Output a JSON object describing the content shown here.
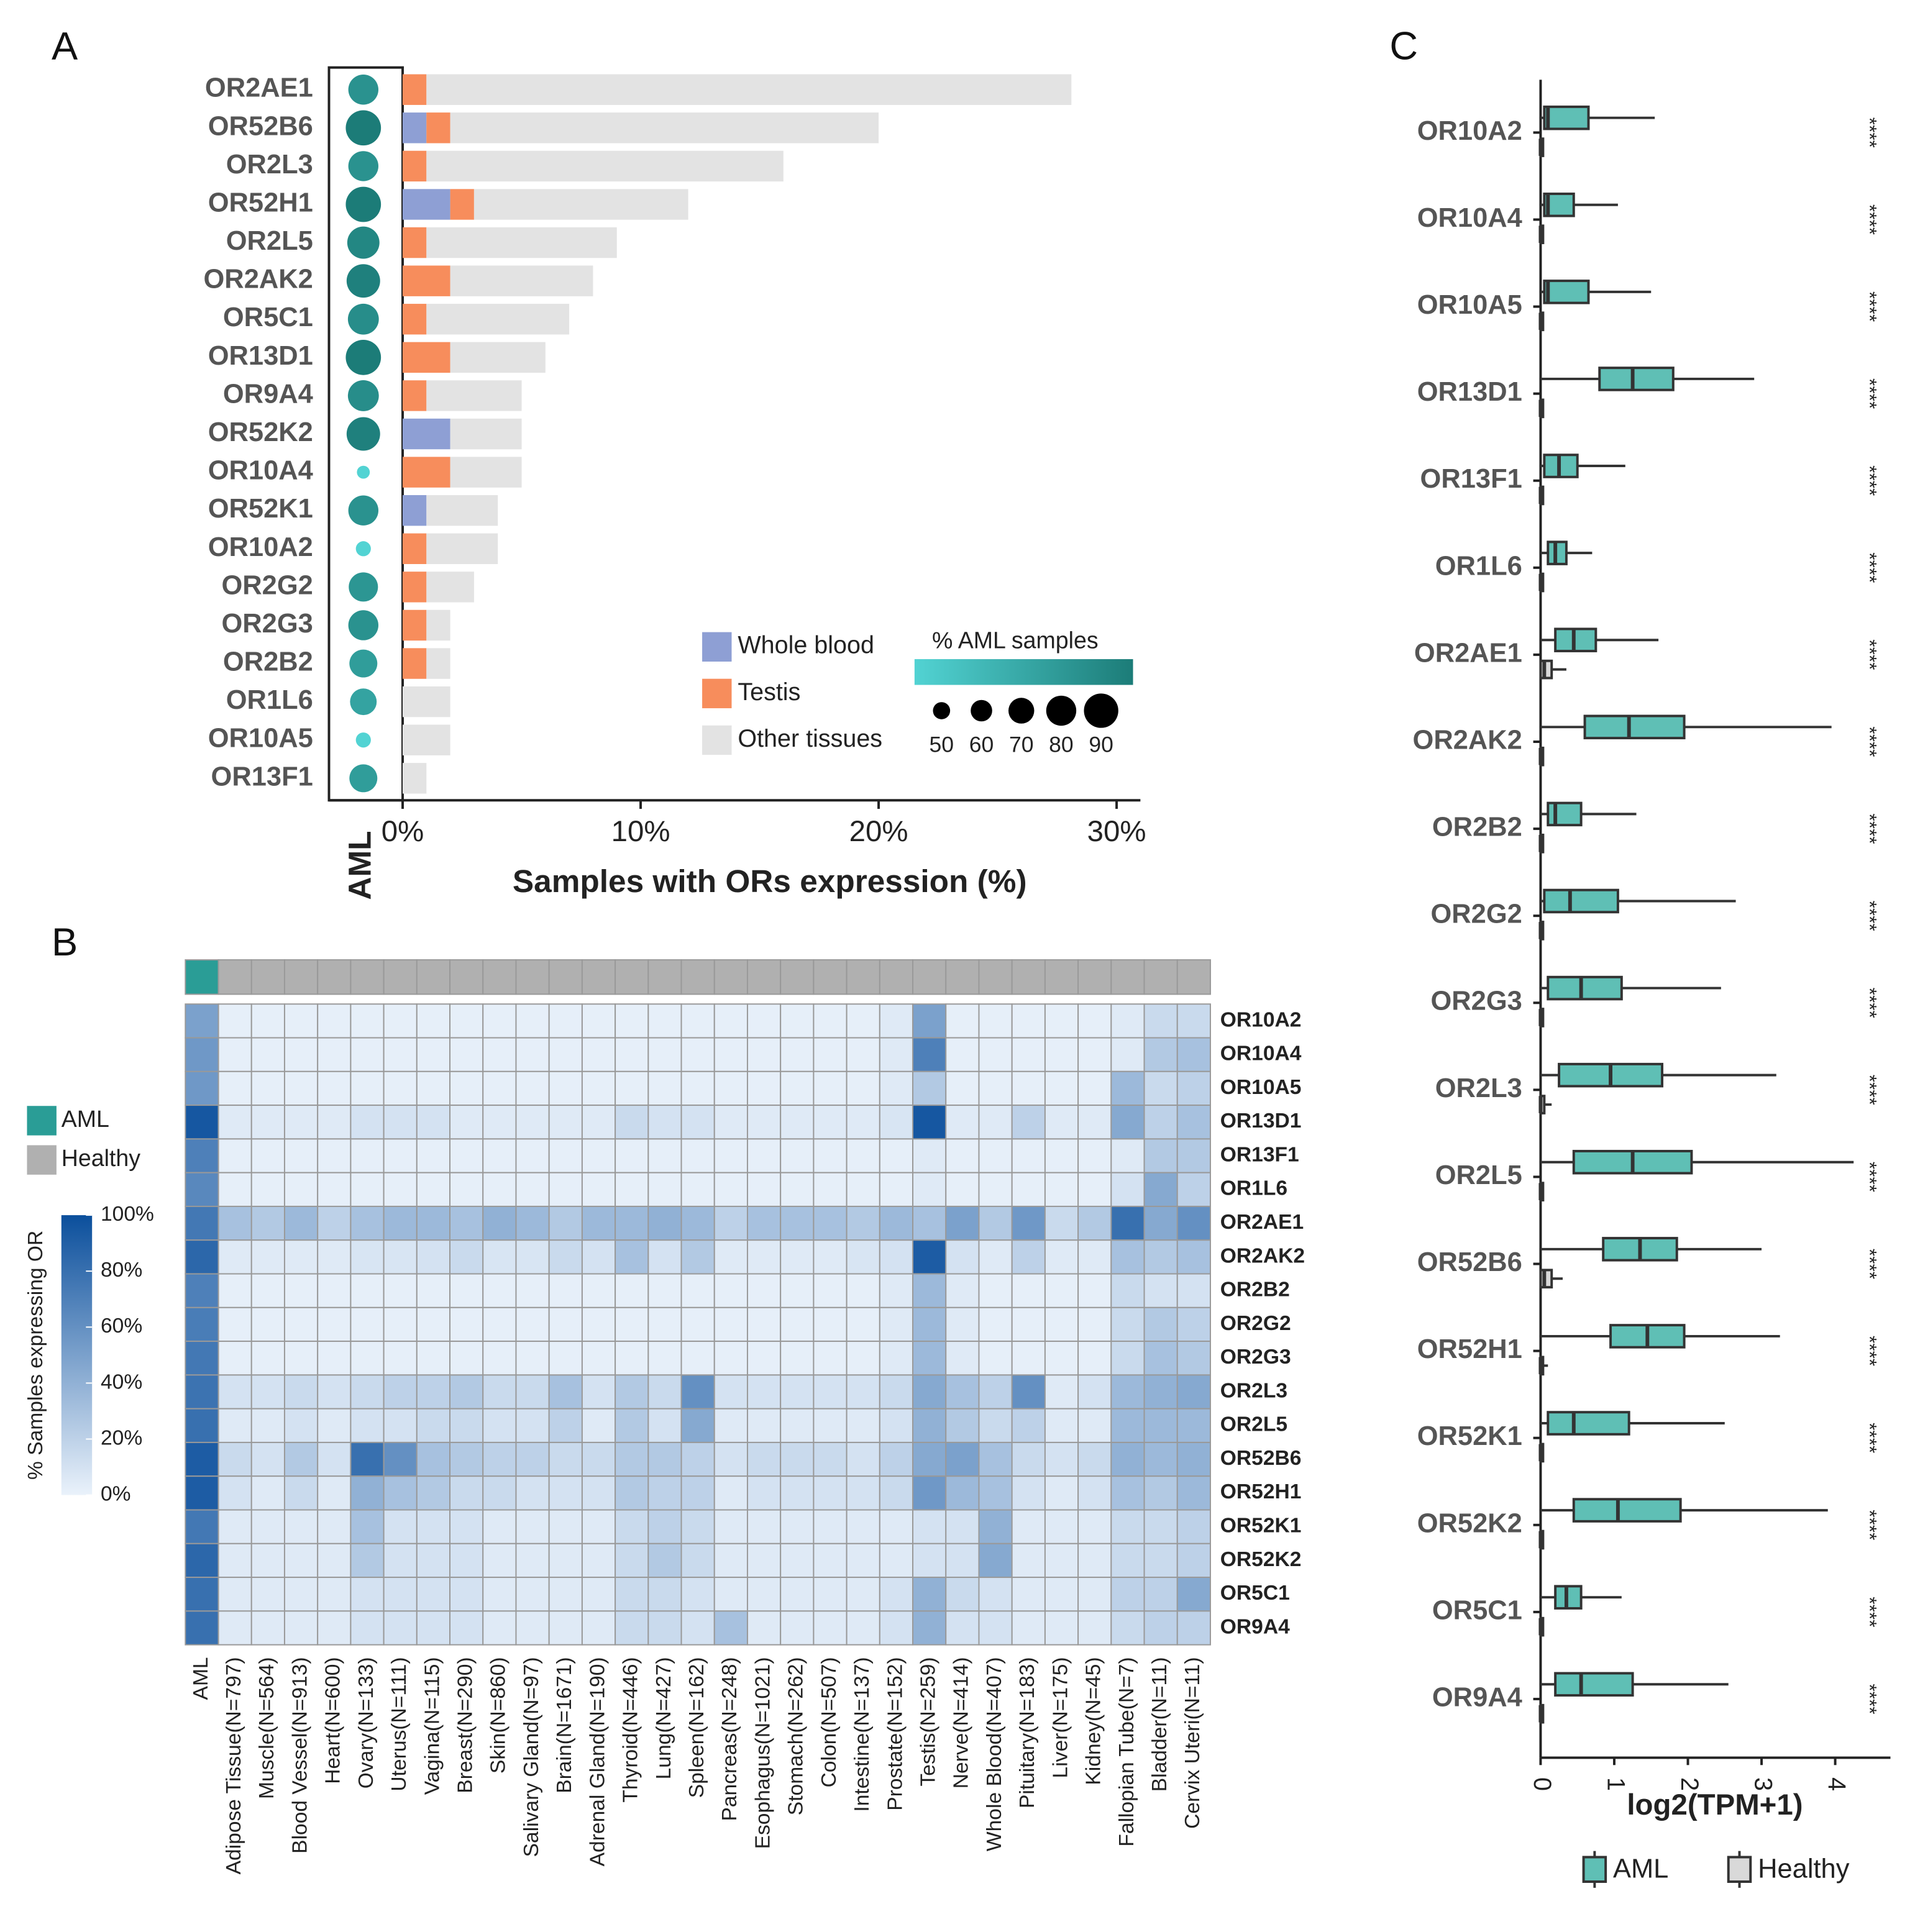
{
  "chart_data": [
    {
      "type": "bar",
      "panel_label": "A",
      "categories": [
        "OR2AE1",
        "OR52B6",
        "OR2L3",
        "OR52H1",
        "OR2L5",
        "OR2AK2",
        "OR5C1",
        "OR13D1",
        "OR9A4",
        "OR52K2",
        "OR10A4",
        "OR52K1",
        "OR10A2",
        "OR2G2",
        "OR2G3",
        "OR2B2",
        "OR1L6",
        "OR10A5",
        "OR13F1"
      ],
      "series": [
        {
          "name": "Whole blood",
          "color": "#8e9fd4",
          "values": [
            0,
            1,
            0,
            2,
            0,
            0,
            0,
            0,
            0,
            2,
            0,
            1,
            0,
            0,
            0,
            0,
            0,
            0,
            0
          ]
        },
        {
          "name": "Testis",
          "color": "#f78d5c",
          "values": [
            1,
            1,
            1,
            1,
            1,
            2,
            1,
            2,
            1,
            0,
            2,
            0,
            1,
            1,
            1,
            1,
            0,
            0,
            0
          ]
        },
        {
          "name": "Other tissues",
          "color": "#e3e3e3",
          "values": [
            27.1,
            18,
            15,
            9,
            8,
            6,
            6,
            4,
            4,
            3,
            3,
            3,
            3,
            2,
            1,
            1,
            2,
            2,
            1
          ]
        }
      ],
      "dots": {
        "name": "% AML samples",
        "values": [
          80,
          92,
          80,
          92,
          85,
          88,
          82,
          92,
          82,
          88,
          40,
          80,
          45,
          78,
          80,
          75,
          72,
          45,
          75
        ],
        "size_ticks": [
          50,
          60,
          70,
          80,
          90
        ],
        "colors": [
          "#52d3d3",
          "#1c7c78"
        ]
      },
      "dot_column_label": "AML",
      "xlim": [
        0,
        31
      ],
      "xticks": [
        {
          "value": 0,
          "label": "0%"
        },
        {
          "value": 10,
          "label": "10%"
        },
        {
          "value": 20,
          "label": "20%"
        },
        {
          "value": 30,
          "label": "30%"
        }
      ],
      "xlabel": "Samples with ORs expression (%)"
    },
    {
      "type": "heatmap",
      "panel_label": "B",
      "rows": [
        "OR10A2",
        "OR10A4",
        "OR10A5",
        "OR13D1",
        "OR13F1",
        "OR1L6",
        "OR2AE1",
        "OR2AK2",
        "OR2B2",
        "OR2G2",
        "OR2G3",
        "OR2L3",
        "OR2L5",
        "OR52B6",
        "OR52H1",
        "OR52K1",
        "OR52K2",
        "OR5C1",
        "OR9A4"
      ],
      "columns": [
        "AML",
        "Adipose Tissue(N=797)",
        "Muscle(N=564)",
        "Blood Vessel(N=913)",
        "Heart(N=600)",
        "Ovary(N=133)",
        "Uterus(N=111)",
        "Vagina(N=115)",
        "Breast(N=290)",
        "Skin(N=860)",
        "Salivary Gland(N=97)",
        "Brain(N=1671)",
        "Adrenal Gland(N=190)",
        "Thyroid(N=446)",
        "Lung(N=427)",
        "Spleen(N=162)",
        "Pancreas(N=248)",
        "Esophagus(N=1021)",
        "Stomach(N=262)",
        "Colon(N=507)",
        "Intestine(N=137)",
        "Prostate(N=152)",
        "Testis(N=259)",
        "Nerve(N=414)",
        "Whole Blood(N=407)",
        "Pituitary(N=183)",
        "Liver(N=175)",
        "Kidney(N=45)",
        "Fallopian Tube(N=7)",
        "Bladder(N=11)",
        "Cervix Uteri(N=11)"
      ],
      "column_groups": [
        "AML",
        "Healthy",
        "Healthy",
        "Healthy",
        "Healthy",
        "Healthy",
        "Healthy",
        "Healthy",
        "Healthy",
        "Healthy",
        "Healthy",
        "Healthy",
        "Healthy",
        "Healthy",
        "Healthy",
        "Healthy",
        "Healthy",
        "Healthy",
        "Healthy",
        "Healthy",
        "Healthy",
        "Healthy",
        "Healthy",
        "Healthy",
        "Healthy",
        "Healthy",
        "Healthy",
        "Healthy",
        "Healthy",
        "Healthy",
        "Healthy"
      ],
      "groups": [
        {
          "name": "AML",
          "color": "#2a9d96"
        },
        {
          "name": "Healthy",
          "color": "#b0b0b0"
        }
      ],
      "values": [
        [
          50,
          2,
          2,
          2,
          2,
          2,
          2,
          2,
          2,
          2,
          2,
          2,
          2,
          2,
          2,
          2,
          2,
          2,
          2,
          2,
          2,
          5,
          50,
          2,
          2,
          2,
          2,
          2,
          5,
          15,
          15
        ],
        [
          55,
          2,
          2,
          2,
          2,
          2,
          2,
          2,
          2,
          2,
          2,
          2,
          2,
          2,
          2,
          2,
          2,
          2,
          2,
          2,
          2,
          5,
          70,
          2,
          2,
          2,
          2,
          2,
          5,
          25,
          30
        ],
        [
          55,
          2,
          2,
          2,
          2,
          2,
          2,
          2,
          2,
          2,
          2,
          2,
          2,
          2,
          2,
          2,
          2,
          2,
          2,
          2,
          2,
          5,
          25,
          2,
          2,
          2,
          2,
          2,
          35,
          15,
          20
        ],
        [
          95,
          5,
          5,
          5,
          5,
          10,
          10,
          10,
          5,
          5,
          5,
          5,
          5,
          15,
          10,
          10,
          5,
          5,
          5,
          5,
          5,
          8,
          95,
          5,
          5,
          20,
          5,
          5,
          45,
          20,
          30
        ],
        [
          70,
          2,
          2,
          2,
          2,
          2,
          2,
          2,
          2,
          2,
          2,
          2,
          2,
          2,
          2,
          2,
          2,
          2,
          2,
          2,
          2,
          2,
          5,
          2,
          2,
          2,
          2,
          2,
          5,
          25,
          25
        ],
        [
          65,
          2,
          2,
          2,
          2,
          2,
          2,
          2,
          2,
          2,
          2,
          2,
          2,
          2,
          2,
          2,
          2,
          2,
          2,
          2,
          2,
          2,
          5,
          2,
          2,
          2,
          2,
          2,
          10,
          45,
          20
        ],
        [
          75,
          30,
          25,
          35,
          20,
          30,
          35,
          35,
          30,
          40,
          35,
          25,
          35,
          35,
          40,
          35,
          20,
          30,
          30,
          30,
          25,
          35,
          30,
          50,
          25,
          55,
          15,
          25,
          80,
          45,
          60
        ],
        [
          85,
          5,
          5,
          5,
          5,
          8,
          8,
          10,
          15,
          8,
          8,
          15,
          10,
          30,
          10,
          25,
          5,
          5,
          5,
          5,
          8,
          10,
          92,
          10,
          5,
          20,
          5,
          5,
          30,
          25,
          30
        ],
        [
          70,
          2,
          2,
          2,
          2,
          2,
          2,
          2,
          2,
          2,
          2,
          2,
          2,
          2,
          2,
          2,
          2,
          2,
          2,
          2,
          2,
          5,
          35,
          5,
          2,
          2,
          2,
          2,
          15,
          10,
          10
        ],
        [
          72,
          2,
          2,
          2,
          2,
          2,
          2,
          2,
          2,
          2,
          2,
          2,
          2,
          2,
          2,
          2,
          2,
          2,
          2,
          2,
          2,
          5,
          35,
          5,
          2,
          2,
          2,
          2,
          15,
          25,
          20
        ],
        [
          75,
          2,
          2,
          2,
          2,
          2,
          2,
          2,
          2,
          2,
          2,
          2,
          2,
          2,
          2,
          2,
          2,
          2,
          2,
          2,
          2,
          5,
          35,
          5,
          2,
          2,
          2,
          2,
          15,
          30,
          25
        ],
        [
          78,
          10,
          10,
          15,
          10,
          15,
          20,
          20,
          25,
          15,
          15,
          30,
          10,
          25,
          15,
          60,
          10,
          10,
          10,
          10,
          10,
          15,
          45,
          30,
          20,
          60,
          5,
          10,
          35,
          40,
          45
        ],
        [
          80,
          5,
          5,
          10,
          5,
          10,
          10,
          15,
          15,
          10,
          10,
          20,
          5,
          25,
          10,
          45,
          5,
          5,
          5,
          5,
          5,
          10,
          40,
          25,
          15,
          20,
          5,
          5,
          35,
          35,
          35
        ],
        [
          92,
          15,
          10,
          25,
          10,
          80,
          60,
          30,
          25,
          20,
          20,
          15,
          15,
          25,
          25,
          20,
          10,
          15,
          15,
          15,
          10,
          20,
          45,
          50,
          30,
          15,
          10,
          15,
          40,
          35,
          40
        ],
        [
          92,
          10,
          5,
          15,
          5,
          40,
          30,
          25,
          15,
          15,
          10,
          10,
          10,
          25,
          20,
          20,
          5,
          10,
          10,
          10,
          10,
          15,
          55,
          35,
          30,
          10,
          5,
          10,
          30,
          25,
          35
        ],
        [
          75,
          5,
          5,
          5,
          5,
          30,
          10,
          10,
          10,
          5,
          5,
          5,
          5,
          15,
          20,
          15,
          5,
          5,
          5,
          5,
          5,
          5,
          10,
          10,
          40,
          5,
          5,
          5,
          15,
          15,
          20
        ],
        [
          85,
          5,
          5,
          5,
          5,
          25,
          10,
          10,
          10,
          5,
          5,
          5,
          5,
          15,
          25,
          15,
          5,
          5,
          5,
          5,
          5,
          5,
          10,
          10,
          45,
          5,
          5,
          5,
          15,
          15,
          20
        ],
        [
          80,
          5,
          5,
          5,
          5,
          10,
          10,
          10,
          10,
          5,
          5,
          5,
          5,
          15,
          15,
          10,
          5,
          5,
          5,
          5,
          5,
          10,
          40,
          15,
          10,
          5,
          5,
          5,
          20,
          20,
          45
        ],
        [
          80,
          5,
          5,
          5,
          5,
          10,
          10,
          10,
          10,
          5,
          5,
          5,
          5,
          15,
          15,
          10,
          30,
          5,
          5,
          5,
          5,
          10,
          40,
          10,
          10,
          5,
          5,
          5,
          15,
          20,
          20
        ]
      ],
      "zlim": [
        0,
        100
      ],
      "colorscale": [
        "#eaf2fb",
        "#0b4f9c"
      ],
      "colorbar": {
        "title": "% Samples expressing OR",
        "ticks": [
          {
            "value": 0,
            "label": "0%"
          },
          {
            "value": 20,
            "label": "20%"
          },
          {
            "value": 40,
            "label": "40%"
          },
          {
            "value": 60,
            "label": "60%"
          },
          {
            "value": 80,
            "label": "80%"
          },
          {
            "value": 100,
            "label": "100%"
          }
        ]
      }
    },
    {
      "type": "box",
      "panel_label": "C",
      "categories": [
        "OR10A2",
        "OR10A4",
        "OR10A5",
        "OR13D1",
        "OR13F1",
        "OR1L6",
        "OR2AE1",
        "OR2AK2",
        "OR2B2",
        "OR2G2",
        "OR2G3",
        "OR2L3",
        "OR2L5",
        "OR52B6",
        "OR52H1",
        "OR52K1",
        "OR52K2",
        "OR5C1",
        "OR9A4"
      ],
      "series": [
        {
          "name": "AML",
          "color": "#5fbfb5",
          "values": [
            [
              0,
              0.05,
              0.1,
              0.65,
              1.55
            ],
            [
              0,
              0.05,
              0.1,
              0.45,
              1.05
            ],
            [
              0,
              0.05,
              0.1,
              0.65,
              1.5
            ],
            [
              0,
              0.8,
              1.25,
              1.8,
              2.9
            ],
            [
              0,
              0.05,
              0.25,
              0.5,
              1.15
            ],
            [
              0,
              0.1,
              0.2,
              0.35,
              0.7
            ],
            [
              0,
              0.2,
              0.45,
              0.75,
              1.6
            ],
            [
              0,
              0.6,
              1.2,
              1.95,
              3.95
            ],
            [
              0,
              0.1,
              0.2,
              0.55,
              1.3
            ],
            [
              0,
              0.05,
              0.4,
              1.05,
              2.65
            ],
            [
              0,
              0.1,
              0.55,
              1.1,
              2.45
            ],
            [
              0,
              0.25,
              0.95,
              1.65,
              3.2
            ],
            [
              0,
              0.45,
              1.25,
              2.05,
              4.25
            ],
            [
              0,
              0.85,
              1.35,
              1.85,
              3
            ],
            [
              0,
              0.95,
              1.45,
              1.95,
              3.25
            ],
            [
              0,
              0.1,
              0.45,
              1.2,
              2.5
            ],
            [
              0,
              0.45,
              1.05,
              1.9,
              3.9
            ],
            [
              0,
              0.2,
              0.35,
              0.55,
              1.1
            ],
            [
              0,
              0.2,
              0.55,
              1.25,
              2.55
            ]
          ]
        },
        {
          "name": "Healthy",
          "color": "#d9d9d9",
          "values": [
            [
              0,
              0,
              0,
              0.02,
              0.02
            ],
            [
              0,
              0,
              0,
              0.02,
              0.02
            ],
            [
              0,
              0,
              0,
              0.02,
              0.02
            ],
            [
              0,
              0,
              0,
              0.02,
              0.02
            ],
            [
              0,
              0,
              0,
              0.02,
              0.02
            ],
            [
              0,
              0,
              0,
              0.02,
              0.02
            ],
            [
              0,
              0,
              0.05,
              0.15,
              0.35
            ],
            [
              0,
              0,
              0,
              0.02,
              0.02
            ],
            [
              0,
              0,
              0,
              0.02,
              0.02
            ],
            [
              0,
              0,
              0,
              0.02,
              0.02
            ],
            [
              0,
              0,
              0,
              0.02,
              0.02
            ],
            [
              0,
              0,
              0,
              0.05,
              0.15
            ],
            [
              0,
              0,
              0,
              0.02,
              0.02
            ],
            [
              0,
              0,
              0.05,
              0.15,
              0.3
            ],
            [
              0,
              0,
              0,
              0.03,
              0.1
            ],
            [
              0,
              0,
              0,
              0.02,
              0.02
            ],
            [
              0,
              0,
              0,
              0.02,
              0.02
            ],
            [
              0,
              0,
              0,
              0.02,
              0.02
            ],
            [
              0,
              0,
              0,
              0.02,
              0.02
            ]
          ]
        }
      ],
      "significance": [
        "****",
        "****",
        "****",
        "****",
        "****",
        "****",
        "****",
        "****",
        "****",
        "****",
        "****",
        "****",
        "****",
        "****",
        "****",
        "****",
        "****",
        "****",
        "****"
      ],
      "xlim": [
        0,
        4.75
      ],
      "xticks": [
        0,
        1,
        2,
        3,
        4
      ],
      "xlabel": "log2(TPM+1)"
    }
  ]
}
